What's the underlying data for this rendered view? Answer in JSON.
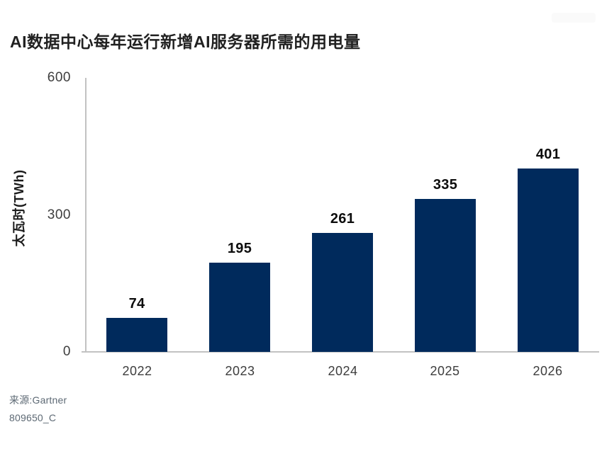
{
  "title": "AI数据中心每年运行新增AI服务器所需的用电量",
  "source": {
    "line1": "来源:Gartner",
    "line2": "809650_C"
  },
  "colors": {
    "bar": "#002a5c",
    "axis_line": "#c2c2c2",
    "title_text": "#212121",
    "tick_text": "#3d3d3d",
    "value_label_text": "#0d0d0d",
    "source_text": "#5d6974"
  },
  "chart_data": {
    "type": "bar",
    "title": "AI数据中心每年运行新增AI服务器所需的用电量",
    "categories": [
      "2022",
      "2023",
      "2024",
      "2025",
      "2026"
    ],
    "values": [
      74,
      195,
      261,
      335,
      401
    ],
    "xlabel": "",
    "ylabel": "太瓦时(TWh)",
    "ylim": [
      0,
      600
    ],
    "yticks": [
      0,
      300,
      600
    ],
    "grid": false,
    "legend": "none",
    "value_labels": true,
    "bar_color": "#002a5c"
  }
}
